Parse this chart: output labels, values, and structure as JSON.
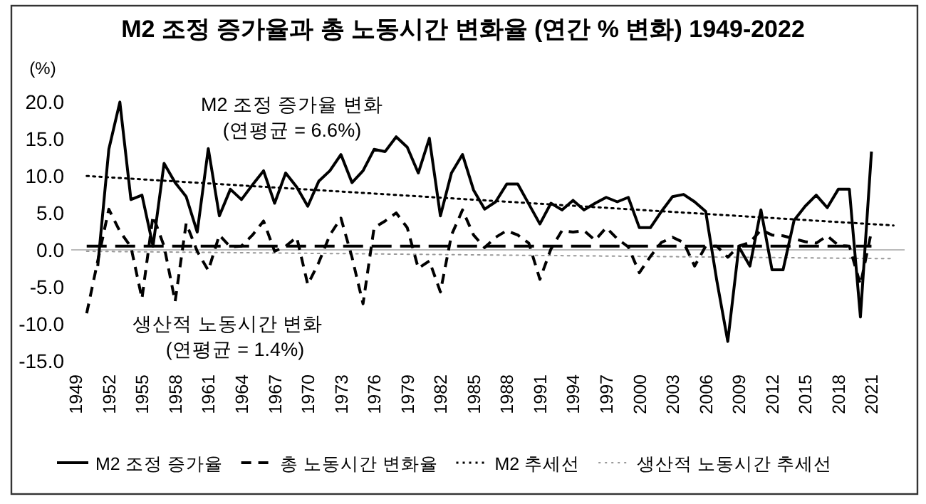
{
  "chart_data": {
    "type": "line",
    "title": "M2 조정 증가율과 총 노동시간 변화율 (연간 % 변화) 1949-2022",
    "ylabel": "(%)",
    "annotations": [
      "M2 조정 증가율 변화",
      "(연평균 = 6.6%)",
      "생산적 노동시간 변화",
      "(연평균 = 1.4%)"
    ],
    "xlim": [
      1948.6,
      2024
    ],
    "ylim": [
      -15,
      20
    ],
    "xticks": [
      1949,
      1952,
      1955,
      1958,
      1961,
      1964,
      1967,
      1970,
      1973,
      1976,
      1979,
      1982,
      1985,
      1988,
      1991,
      1994,
      1997,
      2000,
      2003,
      2006,
      2009,
      2012,
      2015,
      2018,
      2021
    ],
    "yticks": [
      {
        "value": -15,
        "label": "-15.0"
      },
      {
        "value": -10,
        "label": "-10.0"
      },
      {
        "value": -5,
        "label": "-5.0"
      },
      {
        "value": 0,
        "label": "0.0"
      },
      {
        "value": 5,
        "label": "5.0"
      },
      {
        "value": 10,
        "label": "10.0"
      },
      {
        "value": 15,
        "label": "15.0"
      },
      {
        "value": 20,
        "label": "20.0"
      }
    ],
    "legend": "bottom",
    "ref_lines": [
      {
        "axis": "y",
        "value": 0.5,
        "color": "#000000",
        "line_style": "dashed"
      }
    ],
    "series": [
      {
        "name": "M2 조정 증가율",
        "color": "#000000",
        "line_style": "solid",
        "x": [
          1951,
          1952,
          1953,
          1954,
          1955,
          1956,
          1957,
          1958,
          1959,
          1960,
          1961,
          1962,
          1963,
          1964,
          1965,
          1966,
          1967,
          1968,
          1969,
          1970,
          1971,
          1972,
          1973,
          1974,
          1975,
          1976,
          1977,
          1978,
          1979,
          1980,
          1981,
          1982,
          1983,
          1984,
          1985,
          1986,
          1987,
          1988,
          1989,
          1990,
          1991,
          1992,
          1993,
          1994,
          1995,
          1996,
          1997,
          1998,
          1999,
          2000,
          2001,
          2002,
          2003,
          2004,
          2005,
          2006,
          2007,
          2008,
          2009,
          2010,
          2011,
          2012,
          2013,
          2014,
          2015,
          2016,
          2017,
          2018,
          2019,
          2020,
          2021
        ],
        "values": [
          -2.2,
          13.6,
          20.0,
          6.8,
          7.4,
          0.5,
          11.7,
          9.1,
          7.2,
          2.4,
          13.7,
          4.6,
          8.2,
          6.8,
          8.8,
          10.7,
          6.3,
          10.4,
          8.5,
          5.9,
          9.3,
          10.7,
          12.9,
          9.1,
          10.7,
          13.6,
          13.3,
          15.3,
          13.9,
          10.4,
          15.1,
          4.6,
          10.4,
          12.9,
          8.1,
          5.5,
          6.5,
          8.9,
          8.9,
          6.2,
          3.5,
          6.3,
          5.4,
          6.7,
          5.4,
          6.3,
          7.1,
          6.5,
          7.1,
          3.0,
          3.0,
          5.2,
          7.2,
          7.5,
          6.5,
          5.2,
          -4.1,
          -12.4,
          0.4,
          -2.2,
          5.4,
          -2.7,
          -2.7,
          4.0,
          5.9,
          7.4,
          5.7,
          8.2,
          8.2,
          -9.1,
          13.3
        ]
      },
      {
        "name": "총 노동시간 변화율",
        "color": "#000000",
        "line_style": "dashed",
        "x": [
          1950,
          1951,
          1952,
          1953,
          1954,
          1955,
          1956,
          1957,
          1958,
          1959,
          1960,
          1961,
          1962,
          1963,
          1964,
          1965,
          1966,
          1967,
          1968,
          1969,
          1970,
          1971,
          1972,
          1973,
          1974,
          1975,
          1976,
          1977,
          1978,
          1979,
          1980,
          1981,
          1982,
          1983,
          1984,
          1985,
          1986,
          1987,
          1988,
          1989,
          1990,
          1991,
          1992,
          1993,
          1994,
          1995,
          1996,
          1997,
          1998,
          1999,
          2000,
          2001,
          2002,
          2003,
          2004,
          2005,
          2006,
          2007,
          2008,
          2009,
          2010,
          2011,
          2012,
          2013,
          2014,
          2015,
          2016,
          2017,
          2018,
          2019,
          2020,
          2021
        ],
        "values": [
          -8.6,
          -1.5,
          5.5,
          2.5,
          0.4,
          -6.6,
          4.6,
          0.5,
          -7.0,
          3.6,
          -0.2,
          -2.8,
          2.0,
          0.4,
          0.5,
          2.0,
          3.9,
          -0.2,
          0.5,
          1.7,
          -4.7,
          -1.7,
          2.0,
          4.3,
          -1.0,
          -7.3,
          3.0,
          3.9,
          5.0,
          3.0,
          -2.5,
          -1.5,
          -5.7,
          2.0,
          5.4,
          2.0,
          0.3,
          1.7,
          2.6,
          2.0,
          0.9,
          -4.0,
          0.1,
          2.6,
          2.4,
          2.6,
          1.3,
          3.0,
          1.5,
          0.4,
          -3.1,
          -0.9,
          1.0,
          1.7,
          1.0,
          -2.2,
          0.5,
          0.5,
          -1.0,
          0.5,
          1.0,
          2.7,
          2.0,
          1.9,
          1.5,
          1.1,
          0.9,
          1.9,
          0.6,
          0.5,
          -4.7,
          2.5
        ]
      },
      {
        "name": "M2 추세선",
        "color": "#000000",
        "line_style": "dotted",
        "x": [
          1950,
          2023
        ],
        "values": [
          10.0,
          3.3
        ]
      },
      {
        "name": "생산적 노동시간 추세선",
        "color": "#999999",
        "line_style": "dotted",
        "x": [
          1950,
          2023
        ],
        "values": [
          -0.2,
          -1.2
        ]
      }
    ]
  }
}
